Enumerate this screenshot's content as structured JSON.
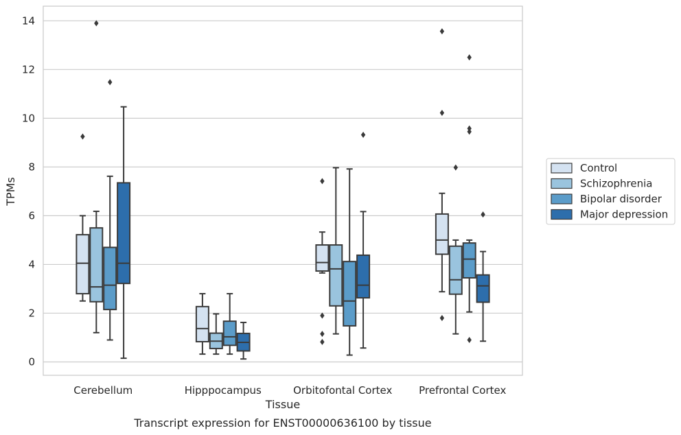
{
  "caption": "Transcript expression for ENST00000636100 by tissue",
  "chart_data": {
    "type": "boxplot",
    "xlabel": "Tissue",
    "ylabel": "TPMs",
    "ylim": [
      -0.55,
      14.6
    ],
    "yticks": [
      0,
      2,
      4,
      6,
      8,
      10,
      12,
      14
    ],
    "grid": true,
    "legend_position": "right",
    "categories": [
      "Cerebellum",
      "Hipppocampus",
      "Orbitofontal Cortex",
      "Prefrontal Cortex"
    ],
    "series": [
      {
        "name": "Control",
        "color": "#d4e2f1",
        "boxes": [
          {
            "whislo": 2.5,
            "q1": 2.8,
            "med": 4.05,
            "q3": 5.22,
            "whishi": 6.0,
            "fliers": [
              9.25
            ]
          },
          {
            "whislo": 0.32,
            "q1": 0.83,
            "med": 1.37,
            "q3": 2.27,
            "whishi": 2.8,
            "fliers": []
          },
          {
            "whislo": 3.65,
            "q1": 3.73,
            "med": 4.08,
            "q3": 4.8,
            "whishi": 5.33,
            "fliers": [
              7.42,
              1.9,
              1.15,
              0.82
            ]
          },
          {
            "whislo": 2.88,
            "q1": 4.42,
            "med": 5.0,
            "q3": 6.07,
            "whishi": 6.92,
            "fliers": [
              13.57,
              10.22,
              1.8
            ]
          }
        ]
      },
      {
        "name": "Schizophrenia",
        "color": "#9ac4de",
        "boxes": [
          {
            "whislo": 1.2,
            "q1": 2.47,
            "med": 3.08,
            "q3": 5.5,
            "whishi": 6.18,
            "fliers": [
              13.9
            ]
          },
          {
            "whislo": 0.32,
            "q1": 0.55,
            "med": 0.85,
            "q3": 1.18,
            "whishi": 1.97,
            "fliers": []
          },
          {
            "whislo": 1.15,
            "q1": 2.3,
            "med": 3.82,
            "q3": 4.8,
            "whishi": 7.97,
            "fliers": []
          },
          {
            "whislo": 1.15,
            "q1": 2.78,
            "med": 3.37,
            "q3": 4.75,
            "whishi": 5.0,
            "fliers": [
              7.98
            ]
          }
        ]
      },
      {
        "name": "Bipolar disorder",
        "color": "#5b9cc9",
        "boxes": [
          {
            "whislo": 0.9,
            "q1": 2.15,
            "med": 3.15,
            "q3": 4.7,
            "whishi": 7.62,
            "fliers": [
              11.48
            ]
          },
          {
            "whislo": 0.32,
            "q1": 0.68,
            "med": 1.03,
            "q3": 1.67,
            "whishi": 2.8,
            "fliers": []
          },
          {
            "whislo": 0.28,
            "q1": 1.48,
            "med": 2.5,
            "q3": 4.12,
            "whishi": 7.92,
            "fliers": []
          },
          {
            "whislo": 2.05,
            "q1": 3.45,
            "med": 4.22,
            "q3": 4.88,
            "whishi": 5.0,
            "fliers": [
              12.5,
              9.58,
              9.45,
              0.9
            ]
          }
        ]
      },
      {
        "name": "Major depression",
        "color": "#2d6eac",
        "boxes": [
          {
            "whislo": 0.15,
            "q1": 3.22,
            "med": 4.05,
            "q3": 7.35,
            "whishi": 10.47,
            "fliers": []
          },
          {
            "whislo": 0.12,
            "q1": 0.45,
            "med": 0.8,
            "q3": 1.17,
            "whishi": 1.62,
            "fliers": []
          },
          {
            "whislo": 0.57,
            "q1": 2.63,
            "med": 3.15,
            "q3": 4.38,
            "whishi": 6.17,
            "fliers": [
              9.32
            ]
          },
          {
            "whislo": 0.85,
            "q1": 2.45,
            "med": 3.12,
            "q3": 3.57,
            "whishi": 4.53,
            "fliers": [
              6.05
            ]
          }
        ]
      }
    ]
  }
}
